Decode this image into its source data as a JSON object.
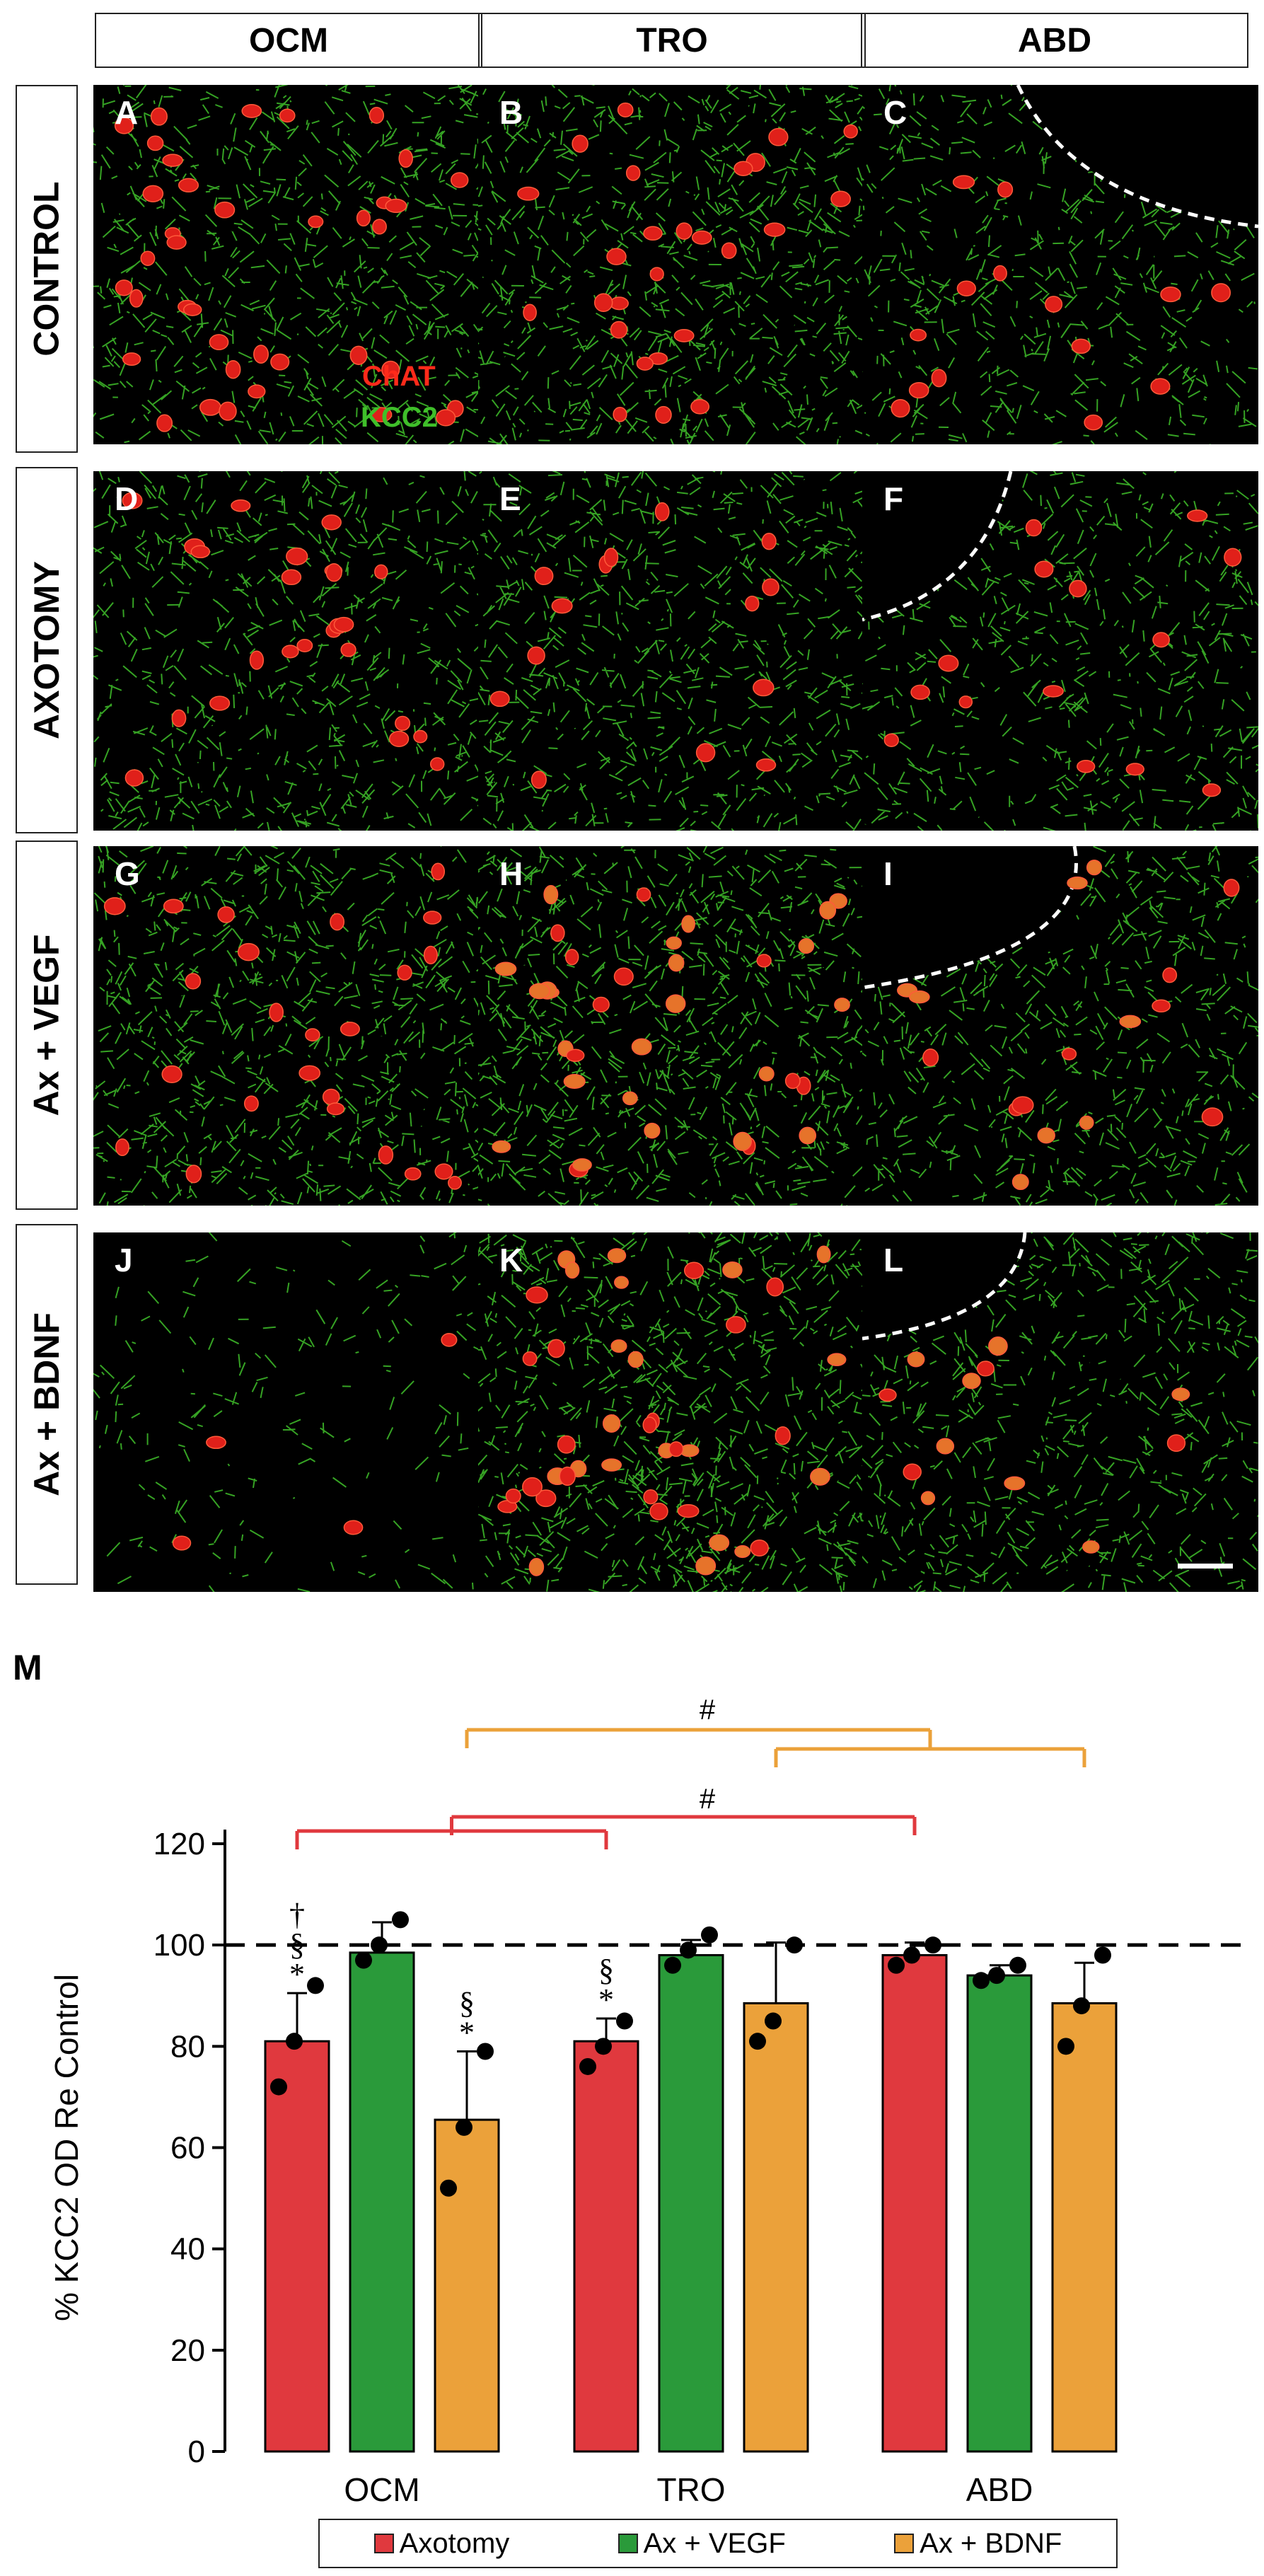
{
  "columns": [
    "OCM",
    "TRO",
    "ABD"
  ],
  "rows": [
    "CONTROL",
    "AXOTOMY",
    "Ax + VEGF",
    "Ax + BDNF"
  ],
  "panel_letters": [
    "A",
    "B",
    "C",
    "D",
    "E",
    "F",
    "G",
    "H",
    "I",
    "J",
    "K",
    "L"
  ],
  "stain_legend": {
    "chat": "ChAT",
    "kcc2": "KCC2",
    "chat_color": "#ff2a1a",
    "kcc2_color": "#3fbf2a"
  },
  "figure_label": "M",
  "colors": {
    "axotomy": "#e0393e",
    "vegf": "#2a9a3a",
    "bdnf": "#eba13a"
  },
  "chart_data": {
    "type": "bar",
    "ylabel": "% KCC2 OD Re Control",
    "ylim": [
      0,
      120
    ],
    "yticks": [
      0,
      20,
      40,
      60,
      80,
      100,
      120
    ],
    "categories": [
      "OCM",
      "TRO",
      "ABD"
    ],
    "reference_line": 100,
    "series": [
      {
        "name": "Axotomy",
        "values": [
          81,
          81,
          98
        ],
        "errors": [
          9.5,
          4.5,
          2.5
        ],
        "points": [
          [
            92,
            81,
            72
          ],
          [
            85,
            80,
            76
          ],
          [
            100,
            98,
            96
          ]
        ]
      },
      {
        "name": "Ax + VEGF",
        "values": [
          98.5,
          98,
          94
        ],
        "errors": [
          6,
          3,
          2
        ],
        "points": [
          [
            105,
            100,
            97
          ],
          [
            102,
            99,
            96
          ],
          [
            96,
            94,
            93
          ]
        ]
      },
      {
        "name": "Ax + BDNF",
        "values": [
          65.5,
          88.5,
          88.5
        ],
        "errors": [
          13.5,
          12,
          8
        ],
        "points": [
          [
            79,
            64,
            52
          ],
          [
            100,
            85,
            81
          ],
          [
            98,
            88,
            80
          ]
        ]
      }
    ],
    "annotations": {
      "ocm_axotomy": [
        "†",
        "§",
        "*"
      ],
      "ocm_bdnf": [
        "§",
        "*"
      ],
      "tro_axotomy": [
        "§",
        "*"
      ],
      "sig_marker": "#"
    }
  }
}
